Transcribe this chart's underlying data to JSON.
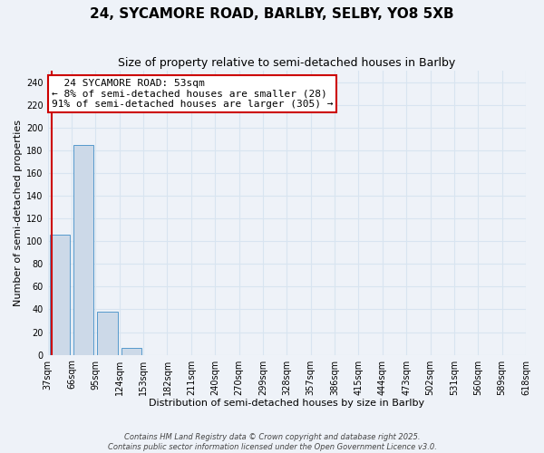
{
  "title": "24, SYCAMORE ROAD, BARLBY, SELBY, YO8 5XB",
  "subtitle": "Size of property relative to semi-detached houses in Barlby",
  "xlabel": "Distribution of semi-detached houses by size in Barlby",
  "ylabel": "Number of semi-detached properties",
  "bar_values": [
    106,
    185,
    38,
    6,
    0,
    0,
    0,
    0,
    0,
    0,
    0,
    0,
    0,
    0,
    0,
    0,
    0,
    0,
    0,
    0
  ],
  "bin_labels": [
    "37sqm",
    "66sqm",
    "95sqm",
    "124sqm",
    "153sqm",
    "182sqm",
    "211sqm",
    "240sqm",
    "270sqm",
    "299sqm",
    "328sqm",
    "357sqm",
    "386sqm",
    "415sqm",
    "444sqm",
    "473sqm",
    "502sqm",
    "531sqm",
    "560sqm",
    "589sqm",
    "618sqm"
  ],
  "bar_color": "#ccd9e8",
  "bar_edge_color": "#5599cc",
  "ylim": [
    0,
    250
  ],
  "yticks": [
    0,
    20,
    40,
    60,
    80,
    100,
    120,
    140,
    160,
    180,
    200,
    220,
    240
  ],
  "annotation_title": "24 SYCAMORE ROAD: 53sqm",
  "annotation_line1": "← 8% of semi-detached houses are smaller (28)",
  "annotation_line2": "91% of semi-detached houses are larger (305) →",
  "annotation_box_color": "#ffffff",
  "annotation_border_color": "#cc0000",
  "background_color": "#eef2f8",
  "grid_color": "#d8e4f0",
  "footer_line1": "Contains HM Land Registry data © Crown copyright and database right 2025.",
  "footer_line2": "Contains public sector information licensed under the Open Government Licence v3.0.",
  "title_fontsize": 11,
  "subtitle_fontsize": 9,
  "axis_label_fontsize": 8,
  "tick_fontsize": 7,
  "annotation_title_fontsize": 8,
  "annotation_body_fontsize": 8,
  "footer_fontsize": 6
}
